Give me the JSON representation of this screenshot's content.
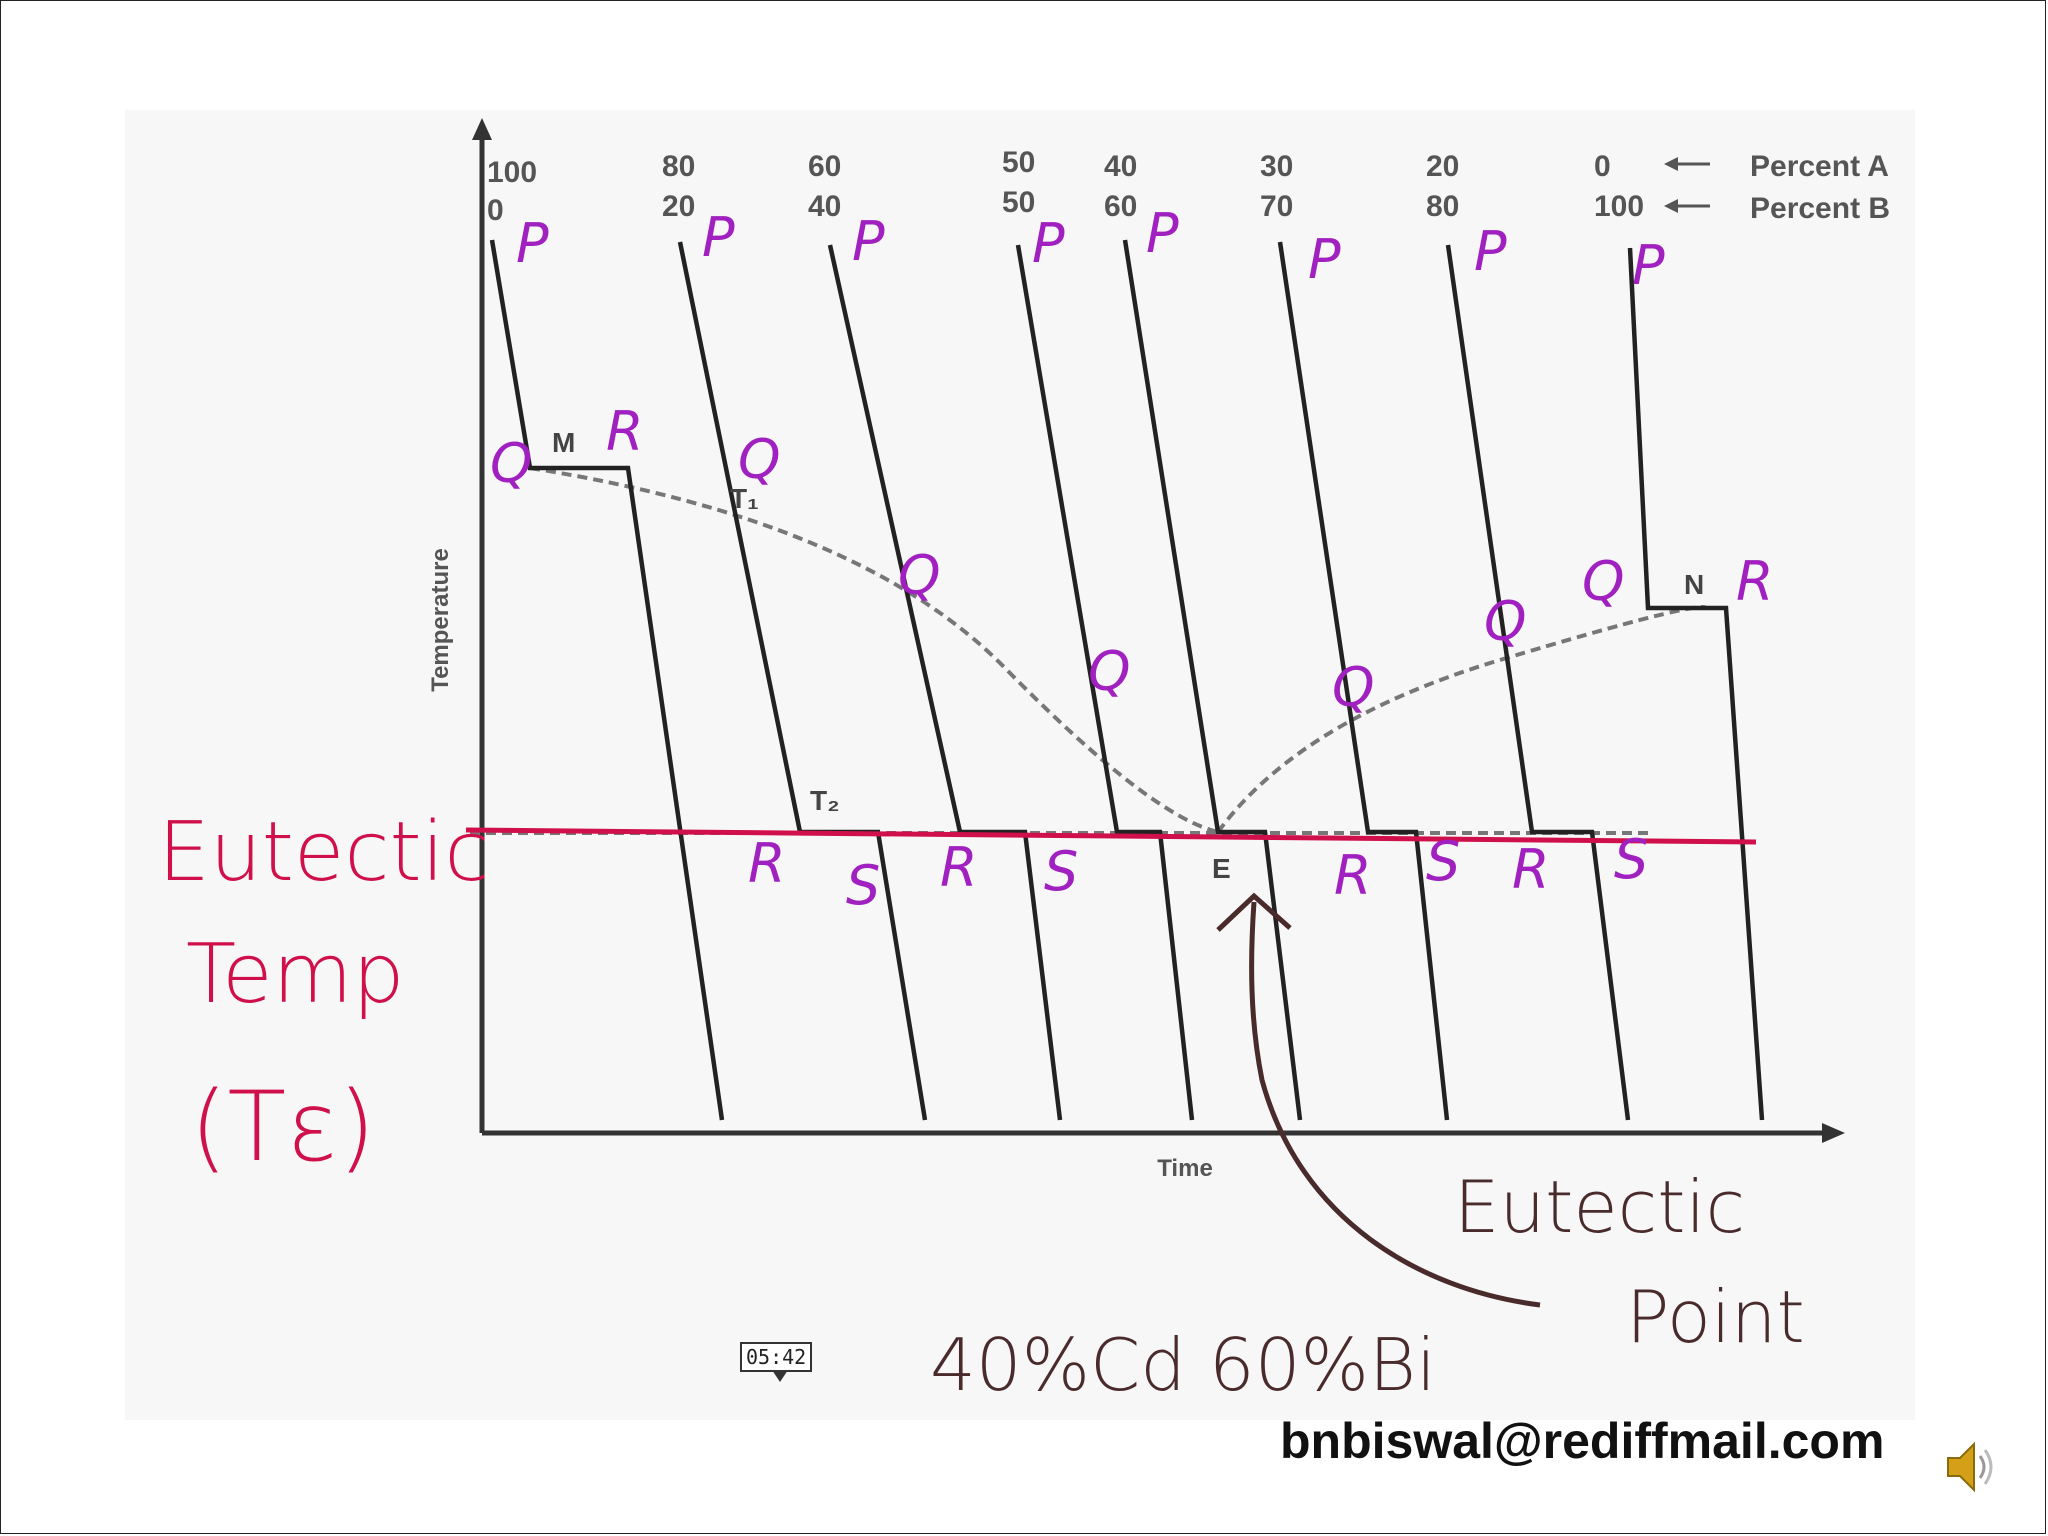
{
  "diagram": {
    "percent_a_label": "Percent A",
    "percent_b_label": "Percent B",
    "compositions": [
      {
        "a": "100",
        "b": "0"
      },
      {
        "a": "80",
        "b": "20"
      },
      {
        "a": "60",
        "b": "40"
      },
      {
        "a": "50",
        "b": "50"
      },
      {
        "a": "40",
        "b": "60"
      },
      {
        "a": "30",
        "b": "70"
      },
      {
        "a": "20",
        "b": "80"
      },
      {
        "a": "0",
        "b": "100"
      }
    ],
    "y_axis_label": "Temperature",
    "x_axis_label": "Time",
    "point_labels": {
      "m": "M",
      "n": "N",
      "t1": "T₁",
      "t2": "T₂",
      "e": "E"
    },
    "handwritten": {
      "p": "P",
      "q": "Q",
      "r": "R",
      "s": "S",
      "eutectic_temp_line1": "Eutectic",
      "eutectic_temp_line2": "Temp",
      "eutectic_temp_line3": "(Tε)",
      "eutectic_point_line1": "Eutectic",
      "eutectic_point_line2": "Point",
      "composition_note": "40%Cd 60%Bi"
    },
    "colors": {
      "purple": "#a020c0",
      "red": "#d0104a",
      "brown": "#4a2b2b"
    }
  },
  "video": {
    "timestamp": "05:42",
    "email": "bnbiswal@rediffmail.com",
    "speaker_icon": "speaker-icon"
  }
}
